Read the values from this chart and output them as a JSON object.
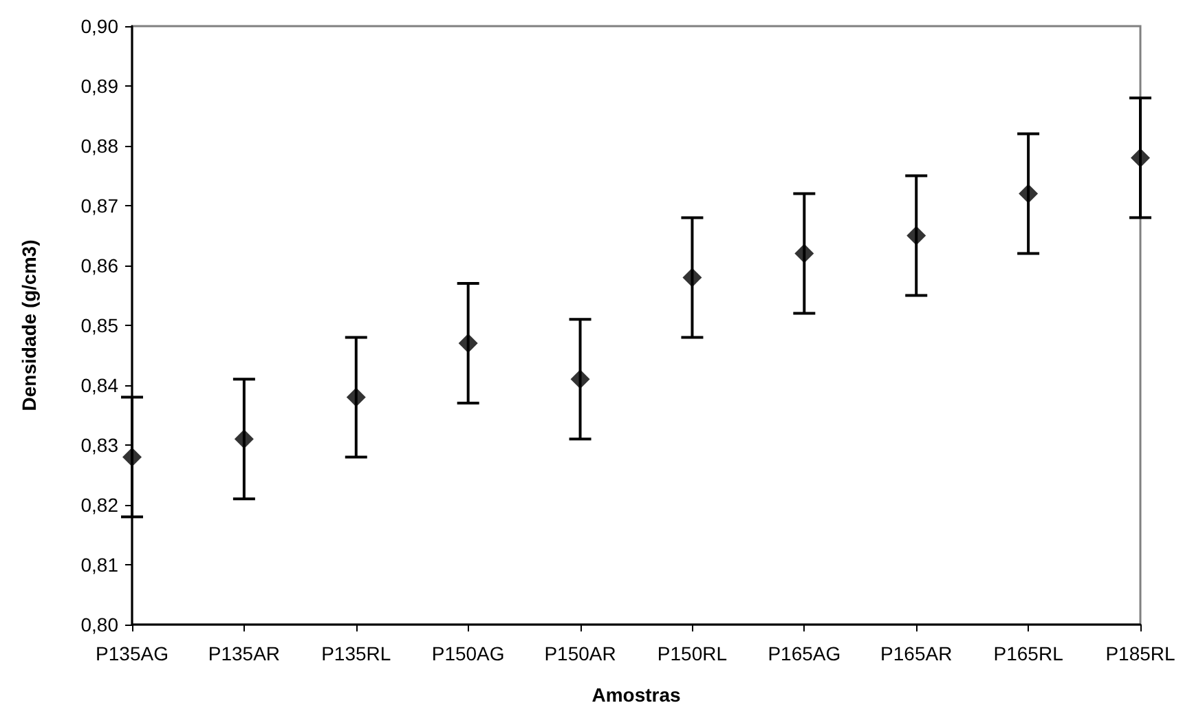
{
  "chart_data": {
    "type": "scatter",
    "xlabel": "Amostras",
    "ylabel": "Densidade (g/cm3)",
    "categories": [
      "P135AG",
      "P135AR",
      "P135RL",
      "P150AG",
      "P150AR",
      "P150RL",
      "P165AG",
      "P165AR",
      "P165RL",
      "P185RL"
    ],
    "series": [
      {
        "color": "#000000",
        "values": [
          0.828,
          0.831,
          0.838,
          0.847,
          0.841,
          0.858,
          0.862,
          0.865,
          0.872,
          0.878
        ],
        "errors": [
          0.01,
          0.01,
          0.01,
          0.01,
          0.01,
          0.01,
          0.01,
          0.01,
          0.01,
          0.01
        ]
      }
    ],
    "ylim": [
      0.8,
      0.9
    ],
    "yticks": [
      {
        "value": 0.8,
        "label": "0,80"
      },
      {
        "value": 0.81,
        "label": "0,81"
      },
      {
        "value": 0.82,
        "label": "0,82"
      },
      {
        "value": 0.83,
        "label": "0,83"
      },
      {
        "value": 0.84,
        "label": "0,84"
      },
      {
        "value": 0.85,
        "label": "0,85"
      },
      {
        "value": 0.86,
        "label": "0,86"
      },
      {
        "value": 0.87,
        "label": "0,87"
      },
      {
        "value": 0.88,
        "label": "0,88"
      },
      {
        "value": 0.89,
        "label": "0,89"
      },
      {
        "value": 0.9,
        "label": "0,90"
      }
    ],
    "marker": "diamond",
    "grid": false
  }
}
